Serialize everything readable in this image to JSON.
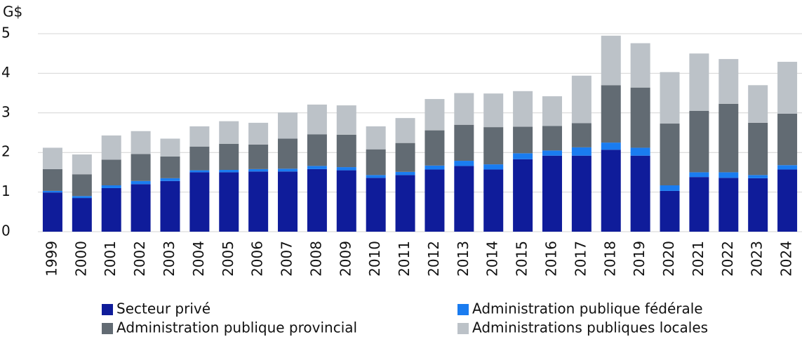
{
  "chart_data": {
    "type": "stacked_bar",
    "y_axis_label": "G$",
    "categories": [
      "1999",
      "2000",
      "2001",
      "2002",
      "2003",
      "2004",
      "2005",
      "2006",
      "2007",
      "2008",
      "2009",
      "2010",
      "2011",
      "2012",
      "2013",
      "2014",
      "2015",
      "2016",
      "2017",
      "2018",
      "2019",
      "2020",
      "2021",
      "2022",
      "2023",
      "2024"
    ],
    "series": [
      {
        "name": "Secteur privé",
        "color": "#0f1c9a",
        "values": [
          0.99,
          0.85,
          1.1,
          1.2,
          1.28,
          1.5,
          1.5,
          1.52,
          1.52,
          1.58,
          1.55,
          1.36,
          1.43,
          1.57,
          1.66,
          1.57,
          1.83,
          1.92,
          1.92,
          2.07,
          1.92,
          1.03,
          1.38,
          1.36,
          1.35,
          1.57
        ]
      },
      {
        "name": "Administration publique fédérale",
        "color": "#1a7cf0",
        "values": [
          0.04,
          0.05,
          0.07,
          0.08,
          0.07,
          0.05,
          0.06,
          0.06,
          0.07,
          0.08,
          0.08,
          0.07,
          0.08,
          0.1,
          0.13,
          0.13,
          0.15,
          0.13,
          0.21,
          0.18,
          0.2,
          0.14,
          0.12,
          0.14,
          0.08,
          0.11
        ]
      },
      {
        "name": "Administration publique provincial",
        "color": "#626b73",
        "values": [
          0.55,
          0.55,
          0.65,
          0.68,
          0.55,
          0.6,
          0.66,
          0.62,
          0.76,
          0.8,
          0.82,
          0.65,
          0.73,
          0.89,
          0.91,
          0.94,
          0.67,
          0.62,
          0.61,
          1.45,
          1.52,
          1.56,
          1.55,
          1.73,
          1.32,
          1.3
        ]
      },
      {
        "name": "Administrations publiques locales",
        "color": "#bcc2c8",
        "values": [
          0.54,
          0.5,
          0.61,
          0.58,
          0.45,
          0.51,
          0.57,
          0.55,
          0.66,
          0.75,
          0.74,
          0.58,
          0.63,
          0.79,
          0.8,
          0.85,
          0.9,
          0.75,
          1.2,
          1.25,
          1.12,
          1.3,
          1.45,
          1.13,
          0.95,
          1.31
        ]
      }
    ],
    "ylim": [
      0,
      5
    ],
    "yticks": [
      0,
      1,
      2,
      3,
      4,
      5
    ],
    "grid": true,
    "legend": "bottom"
  }
}
